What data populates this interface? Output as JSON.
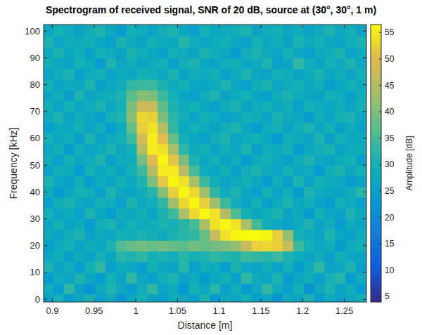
{
  "chart_data": {
    "type": "heatmap",
    "title": "Spectrogram of received signal, SNR of 20 dB, source at (30°, 30°, 1 m)",
    "x_label": "Distance [m]",
    "y_label": "Frequency [kHz]",
    "xlim": [
      0.8895,
      1.2765
    ],
    "ylim": [
      -1,
      102.4
    ],
    "xticks": [
      0.9,
      0.95,
      1,
      1.05,
      1.1,
      1.15,
      1.2,
      1.25
    ],
    "yticks": [
      0,
      10,
      20,
      30,
      40,
      50,
      60,
      70,
      80,
      90,
      100
    ],
    "x": [
      0.895,
      0.9075,
      0.92,
      0.9325,
      0.945,
      0.9575,
      0.97,
      0.9825,
      0.995,
      1.0075,
      1.02,
      1.0325,
      1.045,
      1.0575,
      1.07,
      1.0825,
      1.095,
      1.1075,
      1.12,
      1.1325,
      1.145,
      1.1575,
      1.17,
      1.1825,
      1.195,
      1.2075,
      1.22,
      1.2325,
      1.245,
      1.2575,
      1.27
    ],
    "y": [
      0,
      4,
      8,
      12,
      16,
      20,
      24,
      28,
      32,
      36,
      40,
      44,
      48,
      52,
      56,
      60,
      64,
      68,
      72,
      76,
      80,
      84,
      88,
      92,
      96,
      100
    ],
    "values": [
      [
        26,
        30,
        24,
        27,
        31,
        25,
        28,
        22,
        27,
        30,
        26,
        24,
        29,
        27,
        25,
        31,
        23,
        28,
        26,
        30,
        25,
        27,
        22,
        29,
        26,
        31,
        24,
        28,
        25,
        27,
        30
      ],
      [
        29,
        24,
        33,
        26,
        22,
        28,
        31,
        27,
        24,
        29,
        33,
        26,
        28,
        23,
        30,
        27,
        32,
        25,
        29,
        24,
        27,
        33,
        28,
        25,
        30,
        22,
        27,
        31,
        26,
        29,
        24
      ],
      [
        24,
        28,
        26,
        31,
        27,
        24,
        30,
        26,
        33,
        27,
        25,
        29,
        31,
        26,
        28,
        24,
        27,
        30,
        25,
        33,
        28,
        26,
        31,
        24,
        27,
        29,
        25,
        30,
        32,
        24,
        28
      ],
      [
        31,
        26,
        29,
        24,
        30,
        33,
        25,
        28,
        27,
        24,
        30,
        27,
        26,
        32,
        25,
        29,
        28,
        24,
        31,
        27,
        26,
        29,
        25,
        30,
        24,
        28,
        33,
        26,
        27,
        31,
        25
      ],
      [
        27,
        29,
        25,
        28,
        26,
        30,
        27,
        32,
        31,
        33,
        30,
        31,
        29,
        32,
        30,
        31,
        33,
        32,
        31,
        34,
        33,
        32,
        34,
        31,
        28,
        26,
        29,
        25,
        30,
        27,
        26
      ],
      [
        25,
        28,
        30,
        26,
        29,
        27,
        31,
        36,
        38,
        39,
        38,
        39,
        38,
        37,
        39,
        38,
        39,
        40,
        42,
        47,
        52,
        53,
        52,
        47,
        34,
        30,
        27,
        29,
        24,
        28,
        30
      ],
      [
        28,
        26,
        29,
        31,
        25,
        28,
        27,
        30,
        29,
        31,
        30,
        28,
        31,
        32,
        33,
        38,
        47,
        54,
        56,
        57,
        57,
        56,
        52,
        42,
        30,
        28,
        26,
        31,
        27,
        25,
        29
      ],
      [
        27,
        30,
        26,
        28,
        24,
        29,
        31,
        27,
        30,
        28,
        29,
        31,
        30,
        32,
        35,
        44,
        54,
        56,
        54,
        44,
        35,
        29,
        27,
        25,
        28,
        31,
        26,
        29,
        24,
        28,
        27
      ],
      [
        30,
        26,
        28,
        25,
        31,
        27,
        24,
        29,
        27,
        30,
        26,
        31,
        34,
        44,
        53,
        56,
        54,
        45,
        36,
        30,
        27,
        29,
        31,
        26,
        28,
        24,
        30,
        27,
        25,
        31,
        28
      ],
      [
        25,
        29,
        31,
        27,
        26,
        30,
        28,
        25,
        31,
        27,
        29,
        33,
        43,
        53,
        56,
        52,
        43,
        34,
        29,
        26,
        30,
        25,
        28,
        31,
        27,
        29,
        26,
        24,
        30,
        28,
        25
      ],
      [
        28,
        24,
        27,
        30,
        29,
        25,
        31,
        27,
        26,
        29,
        32,
        41,
        52,
        56,
        53,
        43,
        33,
        28,
        31,
        27,
        25,
        30,
        26,
        29,
        24,
        31,
        28,
        27,
        26,
        29,
        32
      ],
      [
        31,
        27,
        25,
        29,
        24,
        28,
        26,
        30,
        27,
        31,
        40,
        51,
        56,
        54,
        44,
        34,
        29,
        26,
        28,
        30,
        27,
        24,
        29,
        25,
        31,
        26,
        30,
        28,
        27,
        24,
        26
      ],
      [
        26,
        29,
        28,
        24,
        30,
        27,
        29,
        26,
        30,
        34,
        45,
        55,
        55,
        46,
        35,
        28,
        27,
        30,
        25,
        29,
        31,
        28,
        26,
        30,
        27,
        28,
        24,
        29,
        31,
        27,
        30
      ],
      [
        29,
        25,
        30,
        27,
        28,
        31,
        25,
        28,
        29,
        39,
        50,
        56,
        51,
        40,
        31,
        27,
        30,
        26,
        29,
        24,
        28,
        30,
        27,
        25,
        29,
        31,
        27,
        26,
        28,
        30,
        25
      ],
      [
        27,
        30,
        24,
        29,
        26,
        28,
        31,
        27,
        30,
        45,
        55,
        54,
        44,
        33,
        28,
        30,
        26,
        29,
        27,
        31,
        25,
        29,
        28,
        30,
        24,
        27,
        29,
        31,
        26,
        28,
        29
      ],
      [
        30,
        27,
        29,
        25,
        31,
        26,
        28,
        30,
        34,
        49,
        55,
        50,
        38,
        30,
        27,
        25,
        29,
        31,
        26,
        28,
        30,
        27,
        24,
        29,
        28,
        26,
        31,
        25,
        30,
        27,
        28
      ],
      [
        25,
        28,
        27,
        30,
        26,
        29,
        24,
        28,
        38,
        52,
        54,
        45,
        33,
        27,
        30,
        28,
        26,
        29,
        31,
        27,
        24,
        28,
        30,
        26,
        29,
        31,
        27,
        30,
        25,
        28,
        26
      ],
      [
        28,
        31,
        26,
        29,
        27,
        25,
        30,
        31,
        41,
        53,
        52,
        40,
        32,
        29,
        26,
        30,
        28,
        25,
        27,
        30,
        29,
        26,
        31,
        28,
        27,
        24,
        29,
        26,
        30,
        31,
        27
      ],
      [
        29,
        26,
        30,
        27,
        28,
        31,
        27,
        30,
        40,
        48,
        47,
        37,
        31,
        28,
        30,
        27,
        25,
        29,
        31,
        26,
        28,
        30,
        27,
        29,
        25,
        30,
        28,
        27,
        29,
        26,
        30
      ],
      [
        27,
        29,
        25,
        31,
        26,
        28,
        29,
        31,
        37,
        41,
        40,
        34,
        30,
        27,
        25,
        29,
        31,
        26,
        28,
        30,
        27,
        25,
        29,
        31,
        28,
        27,
        26,
        30,
        28,
        25,
        29
      ],
      [
        30,
        26,
        28,
        27,
        31,
        25,
        27,
        29,
        33,
        34,
        34,
        31,
        28,
        30,
        27,
        26,
        28,
        31,
        27,
        25,
        29,
        31,
        26,
        28,
        30,
        27,
        29,
        25,
        27,
        30,
        28
      ],
      [
        26,
        29,
        31,
        25,
        28,
        30,
        26,
        28,
        27,
        30,
        29,
        27,
        31,
        26,
        29,
        28,
        30,
        25,
        28,
        31,
        27,
        26,
        30,
        29,
        26,
        28,
        31,
        27,
        29,
        26,
        30
      ],
      [
        29,
        27,
        26,
        30,
        28,
        24,
        31,
        27,
        29,
        26,
        28,
        30,
        25,
        29,
        31,
        27,
        26,
        29,
        30,
        27,
        28,
        31,
        25,
        27,
        33,
        29,
        26,
        30,
        28,
        31,
        27
      ],
      [
        28,
        31,
        27,
        29,
        25,
        30,
        28,
        26,
        31,
        29,
        27,
        25,
        30,
        28,
        26,
        31,
        29,
        27,
        24,
        29,
        31,
        28,
        26,
        30,
        27,
        25,
        28,
        29,
        31,
        26,
        28
      ],
      [
        31,
        26,
        29,
        28,
        30,
        27,
        25,
        31,
        28,
        26,
        30,
        28,
        27,
        32,
        29,
        26,
        28,
        30,
        27,
        25,
        30,
        27,
        29,
        26,
        31,
        28,
        30,
        27,
        26,
        29,
        31
      ],
      [
        27,
        30,
        28,
        26,
        29,
        31,
        27,
        24,
        30,
        28,
        26,
        29,
        31,
        27,
        25,
        30,
        27,
        28,
        29,
        31,
        26,
        28,
        30,
        27,
        29,
        26,
        28,
        31,
        27,
        30,
        26
      ]
    ],
    "colorbar": {
      "label": "Amplitude [dB]",
      "lim": [
        4,
        56.5
      ],
      "ticks": [
        5,
        10,
        15,
        20,
        25,
        30,
        35,
        40,
        45,
        50,
        55
      ]
    }
  }
}
